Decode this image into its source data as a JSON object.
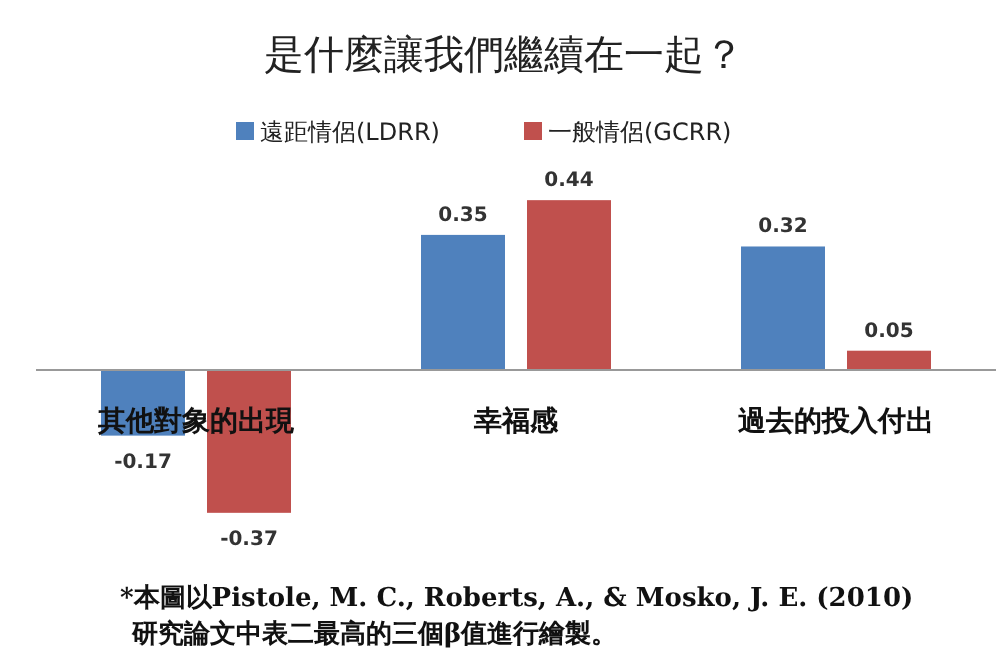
{
  "chart_data": {
    "type": "bar",
    "title": "是什麼讓我們繼續在一起？",
    "categories": [
      "其他對象的出現",
      "幸福感",
      "過去的投入付出"
    ],
    "series": [
      {
        "name": "遠距情侶(LDRR)",
        "color": "#4f81bd",
        "values": [
          -0.17,
          0.35,
          0.32
        ]
      },
      {
        "name": "一般情侶(GCRR)",
        "color": "#c0504d",
        "values": [
          -0.37,
          0.44,
          0.05
        ]
      }
    ],
    "data_labels": true,
    "legend": "top",
    "annotations": [
      "*本圖以Pistole, M. C., Roberts, A., & Mosko, J. E. (2010)\n研究論文中表二最高的三個β值進行繪製。"
    ]
  }
}
